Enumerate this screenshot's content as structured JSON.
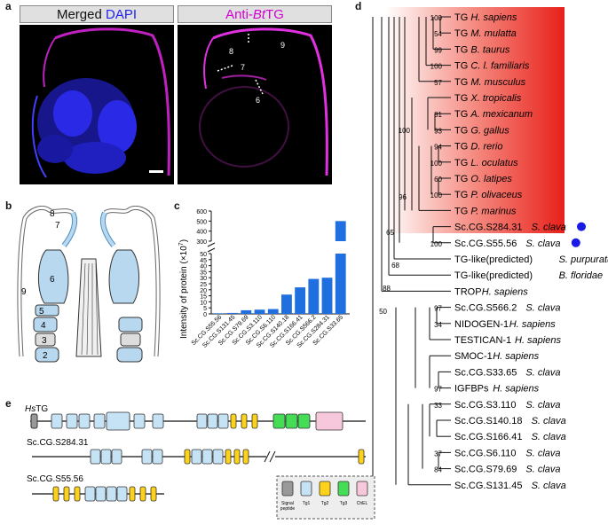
{
  "panels": {
    "a": "a",
    "b": "b",
    "c": "c",
    "d": "d",
    "e": "e"
  },
  "panel_a": {
    "left_title_main": "Merged",
    "left_title_stain": "DAPI",
    "right_title_prefix": "Anti-",
    "right_title_italic": "Bt",
    "right_title_suffix": "TG",
    "region_labels": [
      "8",
      "9",
      "7",
      "6"
    ]
  },
  "panel_b": {
    "labels": [
      "8",
      "7",
      "9",
      "6",
      "5",
      "4",
      "3",
      "2"
    ]
  },
  "chart_data": {
    "type": "bar",
    "categories": [
      "Sc.CG.S55.56",
      "Sc.CG.S131.45",
      "Sc.CG.S79.69",
      "Sc.CG.S3.110",
      "Sc.CG.S6.110",
      "Sc.CG.S140.18",
      "Sc.CG.S166.41",
      "Sc.CG.S566.2",
      "Sc.CG.S284.31",
      "Sc.CG.S33.65"
    ],
    "values": [
      0.5,
      0.8,
      3,
      3.5,
      4,
      16,
      22,
      29,
      30,
      500
    ],
    "ylabel_main": "Intensity of protein (×10",
    "ylabel_exp": "7",
    "ylabel_close": ")",
    "yticks_low": [
      "0",
      "5",
      "10",
      "15",
      "20",
      "25",
      "30",
      "35",
      "40",
      "45",
      "50"
    ],
    "yticks_high": [
      "300",
      "400",
      "500",
      "600"
    ],
    "broken_axis": true,
    "bar_color": "#1f6fe0"
  },
  "panel_d": {
    "leaves": [
      {
        "gene": "TG",
        "species": "H. sapiens",
        "boot": "100",
        "dot": false
      },
      {
        "gene": "TG",
        "species": "M. mulatta",
        "boot": "54",
        "dot": false
      },
      {
        "gene": "TG",
        "species": "B. taurus",
        "boot": "99",
        "dot": false
      },
      {
        "gene": "TG",
        "species": "C. l. familiaris",
        "boot": "100",
        "dot": false
      },
      {
        "gene": "TG",
        "species": "M. musculus",
        "boot": "57",
        "dot": false
      },
      {
        "gene": "TG",
        "species": "X. tropicalis",
        "boot": "",
        "dot": false
      },
      {
        "gene": "TG",
        "species": "A. mexicanum",
        "boot": "81",
        "dot": false
      },
      {
        "gene": "TG",
        "species": "G. gallus",
        "boot": "93",
        "dot": false
      },
      {
        "gene": "TG",
        "species": "D. rerio",
        "boot": "94",
        "dot": false
      },
      {
        "gene": "TG",
        "species": "L. oculatus",
        "boot": "100",
        "dot": false
      },
      {
        "gene": "TG",
        "species": "O. latipes",
        "boot": "60",
        "dot": false
      },
      {
        "gene": "TG",
        "species": "P. olivaceus",
        "boot": "100",
        "dot": false
      },
      {
        "gene": "TG",
        "species": "P. marinus",
        "boot": "",
        "dot": false
      },
      {
        "gene": "Sc.CG.S284.31",
        "species": "S. clava",
        "boot": "",
        "dot": true
      },
      {
        "gene": "Sc.CG.S55.56",
        "species": "S. clava",
        "boot": "100",
        "dot": true
      },
      {
        "gene": "TG-like(predicted)",
        "species": "S. purpuratus",
        "boot": "",
        "dot": false
      },
      {
        "gene": "TG-like(predicted)",
        "species": "B. floridae",
        "boot": "",
        "dot": false
      },
      {
        "gene": "TROP",
        "species": "H. sapiens",
        "boot": "",
        "dot": false
      },
      {
        "gene": "Sc.CG.S566.2",
        "species": "S. clava",
        "boot": "97",
        "dot": false
      },
      {
        "gene": "NIDOGEN-1",
        "species": "H. sapiens",
        "boot": "34",
        "dot": false
      },
      {
        "gene": "TESTICAN-1",
        "species": "H. sapiens",
        "boot": "",
        "dot": false
      },
      {
        "gene": "SMOC-1",
        "species": "H. sapiens",
        "boot": "",
        "dot": false
      },
      {
        "gene": "Sc.CG.S33.65",
        "species": "S. clava",
        "boot": "",
        "dot": false
      },
      {
        "gene": "IGFBPs",
        "species": "H. sapiens",
        "boot": "97",
        "dot": false
      },
      {
        "gene": "Sc.CG.S3.110",
        "species": "S. clava",
        "boot": "33",
        "dot": false
      },
      {
        "gene": "Sc.CG.S140.18",
        "species": "S. clava",
        "boot": "",
        "dot": false
      },
      {
        "gene": "Sc.CG.S166.41",
        "species": "S. clava",
        "boot": "",
        "dot": false
      },
      {
        "gene": "Sc.CG.S6.110",
        "species": "S. clava",
        "boot": "37",
        "dot": false
      },
      {
        "gene": "Sc.CG.S79.69",
        "species": "S. clava",
        "boot": "84",
        "dot": false
      },
      {
        "gene": "Sc.CG.S131.45",
        "species": "S. clava",
        "boot": "",
        "dot": false
      }
    ],
    "inner_bootstraps": [
      "100",
      "96",
      "65",
      "68",
      "88",
      "50"
    ],
    "highlight_color": "#e8201a",
    "dot_color": "#1a1ae6"
  },
  "panel_e": {
    "gene1_prefix": "Hs",
    "gene1_name": "TG",
    "gene2_name": "Sc.CG.S284.31",
    "gene3_name": "Sc.CG.S55.56",
    "legend": [
      {
        "label": "Signal peptide",
        "color": "#999999"
      },
      {
        "label": "Tg1",
        "color": "#c6e3f5"
      },
      {
        "label": "Tg2",
        "color": "#ffd21a"
      },
      {
        "label": "Tg3",
        "color": "#44dd55"
      },
      {
        "label": "ChEL",
        "color": "#f7c8dc"
      }
    ]
  }
}
